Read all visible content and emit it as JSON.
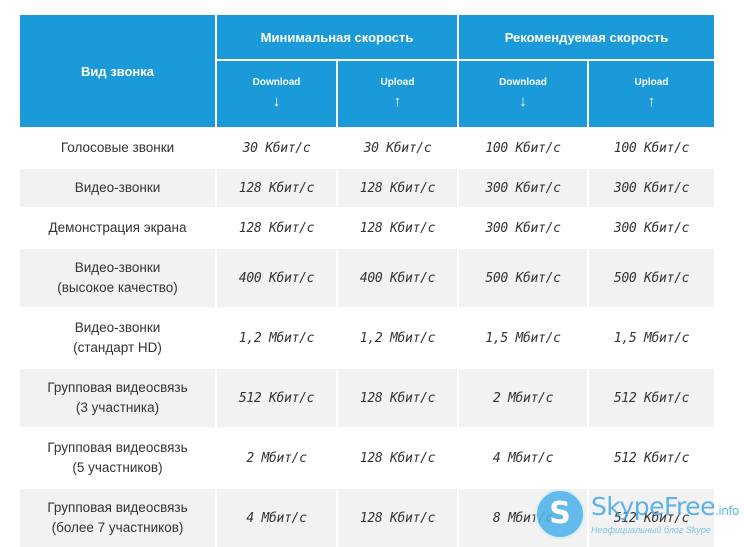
{
  "header": {
    "call_type": "Вид звонка",
    "min_speed": "Минимальная скорость",
    "rec_speed": "Рекомендуемая скорость",
    "download": "Download",
    "upload": "Upload",
    "arrow_down": "↓",
    "arrow_up": "↑"
  },
  "rows": [
    {
      "label": [
        "Голосовые звонки"
      ],
      "min_down": "30 Кбит/с",
      "min_up": "30 Кбит/с",
      "rec_down": "100 Кбит/с",
      "rec_up": "100 Кбит/с"
    },
    {
      "label": [
        "Видео-звонки"
      ],
      "min_down": "128 Кбит/с",
      "min_up": "128 Кбит/с",
      "rec_down": "300 Кбит/с",
      "rec_up": "300 Кбит/с"
    },
    {
      "label": [
        "Демонстрация экрана"
      ],
      "min_down": "128 Кбит/с",
      "min_up": "128 Кбит/с",
      "rec_down": "300 Кбит/с",
      "rec_up": "300 Кбит/с"
    },
    {
      "label": [
        "Видео-звонки",
        "(высокое качество)"
      ],
      "min_down": "400 Кбит/с",
      "min_up": "400 Кбит/с",
      "rec_down": "500 Кбит/с",
      "rec_up": "500 Кбит/с"
    },
    {
      "label": [
        "Видео-звонки",
        "(стандарт HD)"
      ],
      "min_down": "1,2 Мбит/с",
      "min_up": "1,2 Мбит/с",
      "rec_down": "1,5 Мбит/с",
      "rec_up": "1,5 Мбит/с"
    },
    {
      "label": [
        "Групповая видеосвязь",
        "(3 участника)"
      ],
      "min_down": "512 Кбит/с",
      "min_up": "128 Кбит/с",
      "rec_down": "2 Мбит/с",
      "rec_up": "512 Кбит/с"
    },
    {
      "label": [
        "Групповая видеосвязь",
        "(5 участников)"
      ],
      "min_down": "2 Мбит/с",
      "min_up": "128 Кбит/с",
      "rec_down": "4 Мбит/с",
      "rec_up": "512 Кбит/с"
    },
    {
      "label": [
        "Групповая видеосвязь",
        "(более 7 участников)"
      ],
      "min_down": "4 Мбит/с",
      "min_up": "128 Кбит/с",
      "rec_down": "8 Мбит/с",
      "rec_up": "512 Кбит/с"
    }
  ],
  "watermark": {
    "logo_letter": "S",
    "brand": "SkypeFree",
    "domain": ".info",
    "tagline": "Неофициальный блог Skype"
  }
}
